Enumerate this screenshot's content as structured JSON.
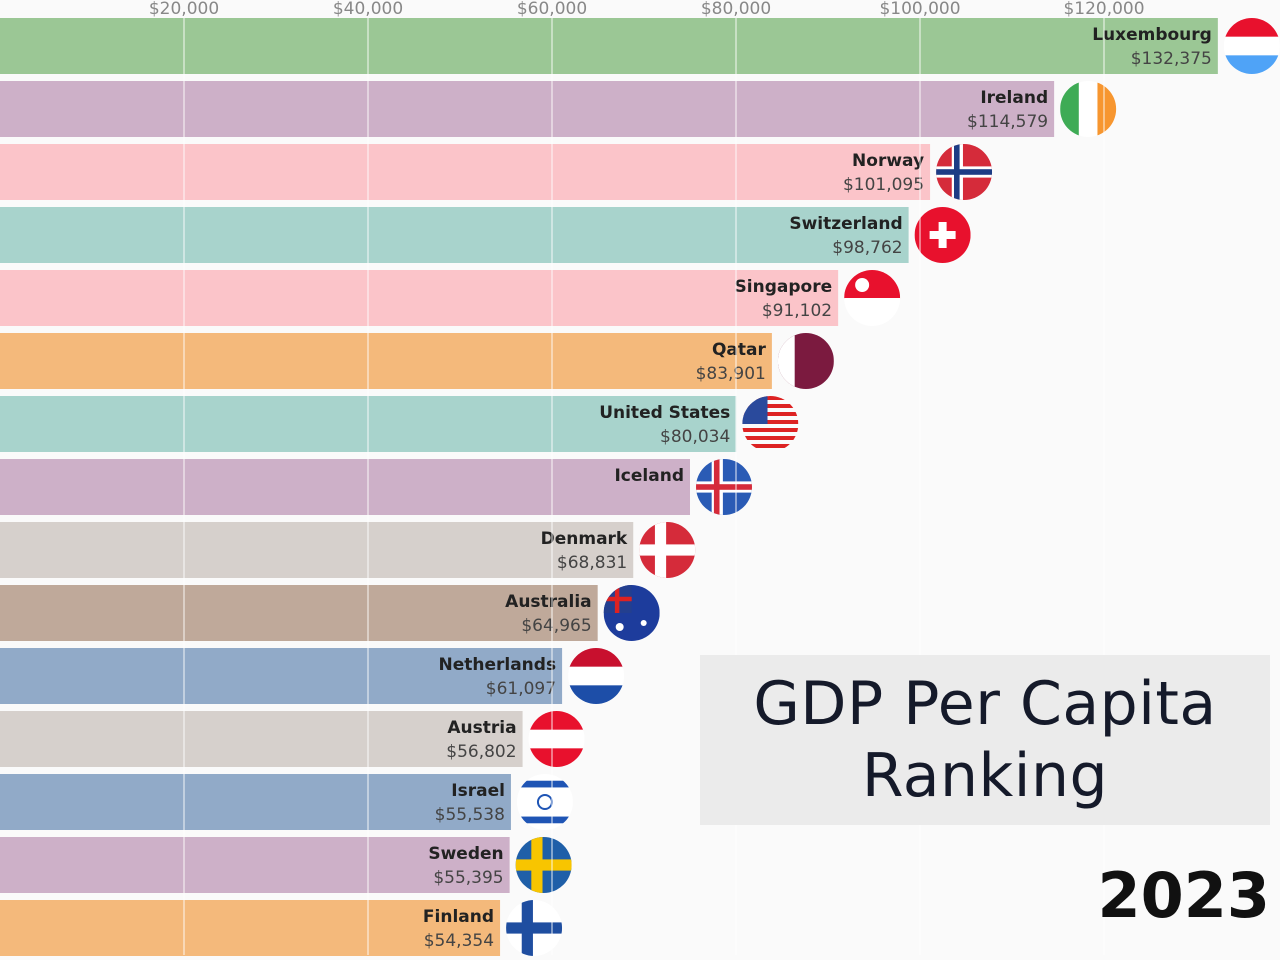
{
  "title": "GDP Per Capita Ranking",
  "year": "2023",
  "chart_data": {
    "type": "bar",
    "orientation": "horizontal",
    "xlim": [
      0,
      138000
    ],
    "xticks": [
      20000,
      40000,
      60000,
      80000,
      100000,
      120000
    ],
    "xtick_labels": [
      "$20,000",
      "$40,000",
      "$60,000",
      "$80,000",
      "$100,000",
      "$120,000"
    ],
    "grid": true,
    "categories": [
      "Luxembourg",
      "Ireland",
      "Norway",
      "Switzerland",
      "Singapore",
      "Qatar",
      "United States",
      "Iceland",
      "Denmark",
      "Australia",
      "Netherlands",
      "Austria",
      "Israel",
      "Sweden",
      "Finland"
    ],
    "values": [
      132375,
      114579,
      101095,
      98762,
      91102,
      83901,
      80034,
      75000,
      68831,
      64965,
      61097,
      56802,
      55538,
      55395,
      54354
    ],
    "value_labels": [
      "$132,375",
      "$114,579",
      "$101,095",
      "$98,762",
      "$91,102",
      "$83,901",
      "$80,034",
      "",
      "$68,831",
      "$64,965",
      "$61,097",
      "$56,802",
      "$55,538",
      "$55,395",
      "$54,354"
    ],
    "colors": [
      "#9bc795",
      "#cdb0c8",
      "#fbc4c9",
      "#a8d3cc",
      "#fbc4c9",
      "#f4b97b",
      "#a8d3cc",
      "#cdb0c8",
      "#d6d0cc",
      "#bfa99a",
      "#91aac8",
      "#d6d0cc",
      "#91aac8",
      "#cdb0c8",
      "#f4b97b"
    ],
    "flags": [
      "luxembourg-flag",
      "ireland-flag",
      "norway-flag",
      "switzerland-flag",
      "singapore-flag",
      "qatar-flag",
      "united-states-flag",
      "iceland-flag",
      "denmark-flag",
      "australia-flag",
      "netherlands-flag",
      "austria-flag",
      "israel-flag",
      "sweden-flag",
      "finland-flag"
    ]
  }
}
